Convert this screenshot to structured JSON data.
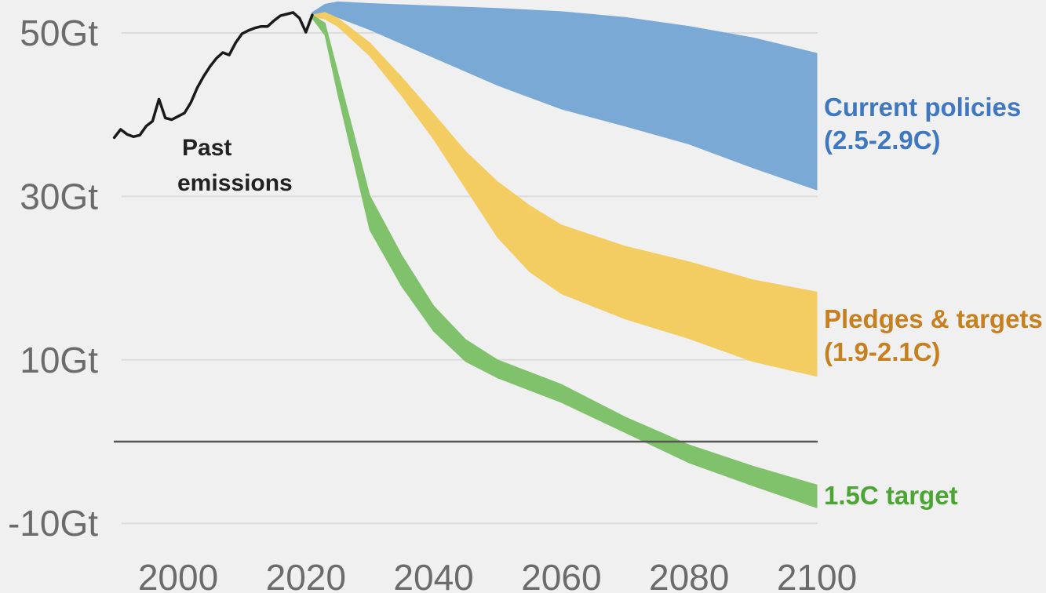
{
  "chart_data": {
    "type": "area",
    "title": "",
    "xlabel": "",
    "ylabel": "",
    "xlim": [
      1990,
      2100
    ],
    "ylim": [
      -10,
      50
    ],
    "x_ticks": [
      2000,
      2020,
      2040,
      2060,
      2080,
      2100
    ],
    "x_tick_labels": [
      "2000",
      "2020",
      "2040",
      "2060",
      "2080",
      "2100"
    ],
    "y_ticks": [
      50,
      30,
      10,
      -10
    ],
    "y_tick_labels": [
      "50Gt",
      "30Gt",
      "10Gt",
      "-10Gt"
    ],
    "grid": true,
    "zero_line": true,
    "past_emissions": {
      "name": "Past emissions",
      "label_lines": [
        "Past",
        "emissions"
      ],
      "color": "#1a1a1a",
      "x": [
        1990,
        1991,
        1992,
        1993,
        1994,
        1995,
        1996,
        1997,
        1998,
        1999,
        2000,
        2001,
        2002,
        2003,
        2004,
        2005,
        2006,
        2007,
        2008,
        2009,
        2010,
        2011,
        2012,
        2013,
        2014,
        2015,
        2016,
        2017,
        2018,
        2019,
        2020,
        2021
      ],
      "y": [
        37.2,
        38.2,
        37.6,
        37.3,
        37.5,
        38.6,
        39.2,
        41.9,
        39.6,
        39.4,
        39.8,
        40.2,
        41.5,
        43.3,
        44.7,
        45.9,
        46.9,
        47.6,
        47.3,
        48.8,
        49.9,
        50.3,
        50.6,
        50.8,
        50.8,
        51.5,
        52.1,
        52.3,
        52.5,
        51.8,
        50.1,
        52.2
      ]
    },
    "series": [
      {
        "name": "Current policies",
        "label_lines": [
          "Current policies",
          "(2.5-2.9C)"
        ],
        "color": "#7aa9d6",
        "label_color": "#3f78c0",
        "x": [
          2021,
          2023,
          2025,
          2030,
          2040,
          2050,
          2060,
          2070,
          2080,
          2090,
          2100
        ],
        "upper": [
          52.5,
          53.5,
          53.8,
          53.6,
          53.3,
          53.0,
          52.6,
          51.9,
          50.8,
          49.4,
          47.5
        ],
        "lower": [
          52.1,
          52.3,
          51.9,
          50.4,
          47.0,
          43.6,
          40.7,
          38.6,
          36.4,
          33.5,
          30.8
        ]
      },
      {
        "name": "Pledges & targets",
        "label_lines": [
          "Pledges & targets",
          "(1.9-2.1C)"
        ],
        "color": "#f3cd62",
        "label_color": "#c7801f",
        "x": [
          2021,
          2023,
          2025,
          2030,
          2035,
          2040,
          2045,
          2050,
          2055,
          2060,
          2070,
          2080,
          2090,
          2100
        ],
        "upper": [
          52.2,
          52.5,
          51.8,
          48.8,
          44.6,
          40.1,
          35.5,
          31.8,
          28.9,
          26.5,
          23.9,
          22.0,
          19.8,
          18.3
        ],
        "lower": [
          52.0,
          51.7,
          50.8,
          47.2,
          42.3,
          37.0,
          31.0,
          25.0,
          20.8,
          18.1,
          15.0,
          12.6,
          9.8,
          8.0
        ]
      },
      {
        "name": "1.5C target",
        "label_lines": [
          "1.5C target"
        ],
        "color": "#80c26c",
        "label_color": "#4aa533",
        "x": [
          2021,
          2023,
          2025,
          2030,
          2035,
          2040,
          2045,
          2050,
          2060,
          2070,
          2080,
          2090,
          2100
        ],
        "upper": [
          52.2,
          51.2,
          45.2,
          30.1,
          22.8,
          16.6,
          12.5,
          10.0,
          7.0,
          3.0,
          -0.4,
          -3.0,
          -5.3
        ],
        "lower": [
          51.8,
          49.7,
          42.5,
          25.9,
          19.0,
          13.5,
          9.8,
          7.8,
          4.8,
          1.1,
          -2.6,
          -5.4,
          -8.1
        ]
      }
    ]
  }
}
